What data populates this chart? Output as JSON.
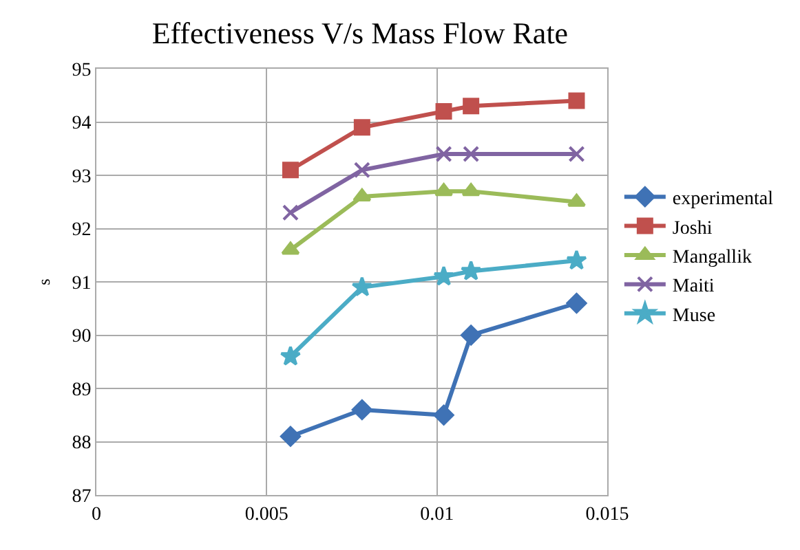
{
  "chart_data": {
    "type": "line",
    "title": "Effectiveness V/s Mass Flow Rate",
    "ylabel": "s",
    "x": [
      0.0057,
      0.0078,
      0.0102,
      0.011,
      0.0141
    ],
    "xlim": [
      0,
      0.015
    ],
    "xticks": [
      0,
      0.005,
      0.01,
      0.015
    ],
    "ylim": [
      87,
      95
    ],
    "yticks": [
      87,
      88,
      89,
      90,
      91,
      92,
      93,
      94,
      95
    ],
    "grid": true,
    "legend": "right",
    "series": [
      {
        "name": "experimental",
        "color": "#3f72b5",
        "marker": "diamond",
        "values": [
          88.1,
          88.6,
          88.5,
          90.0,
          90.6
        ]
      },
      {
        "name": "Joshi",
        "color": "#c0504d",
        "marker": "square",
        "values": [
          93.1,
          93.9,
          94.2,
          94.3,
          94.4
        ]
      },
      {
        "name": "Mangallik",
        "color": "#9bbb59",
        "marker": "triangle",
        "values": [
          91.6,
          92.6,
          92.7,
          92.7,
          92.5
        ]
      },
      {
        "name": "Maiti",
        "color": "#8064a2",
        "marker": "cross",
        "values": [
          92.3,
          93.1,
          93.4,
          93.4,
          93.4
        ]
      },
      {
        "name": "Muse",
        "color": "#4bacc6",
        "marker": "star",
        "values": [
          89.6,
          90.9,
          91.1,
          91.2,
          91.4
        ]
      }
    ]
  }
}
